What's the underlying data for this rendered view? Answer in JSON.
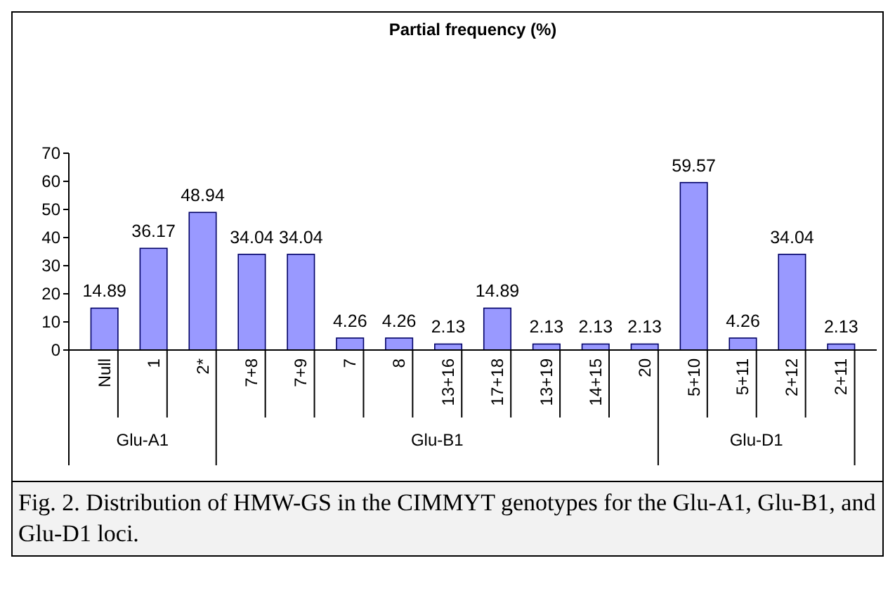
{
  "chart_data": {
    "type": "bar",
    "title": "Partial frequency (%)",
    "categories": [
      "Null",
      "1",
      "2*",
      "7+8",
      "7+9",
      "7",
      "8",
      "13+16",
      "17+18",
      "13+19",
      "14+15",
      "20",
      "5+10",
      "5+11",
      "2+12",
      "2+11"
    ],
    "values": [
      14.89,
      36.17,
      48.94,
      34.04,
      34.04,
      4.26,
      4.26,
      2.13,
      14.89,
      2.13,
      2.13,
      2.13,
      59.57,
      4.26,
      34.04,
      2.13
    ],
    "color": "#9999ff",
    "data_labels": true,
    "grid": false,
    "ylim": [
      0,
      70
    ],
    "yticks": [
      0,
      10,
      20,
      30,
      40,
      50,
      60,
      70
    ],
    "annotations": [
      "Glu-A1",
      "Glu-B1",
      "Glu-D1",
      "Fig. 2. Distribution of HMW-GS in the CIMMYT genotypes for the Glu-A1, Glu-B1, and Glu-D1 loci."
    ]
  }
}
